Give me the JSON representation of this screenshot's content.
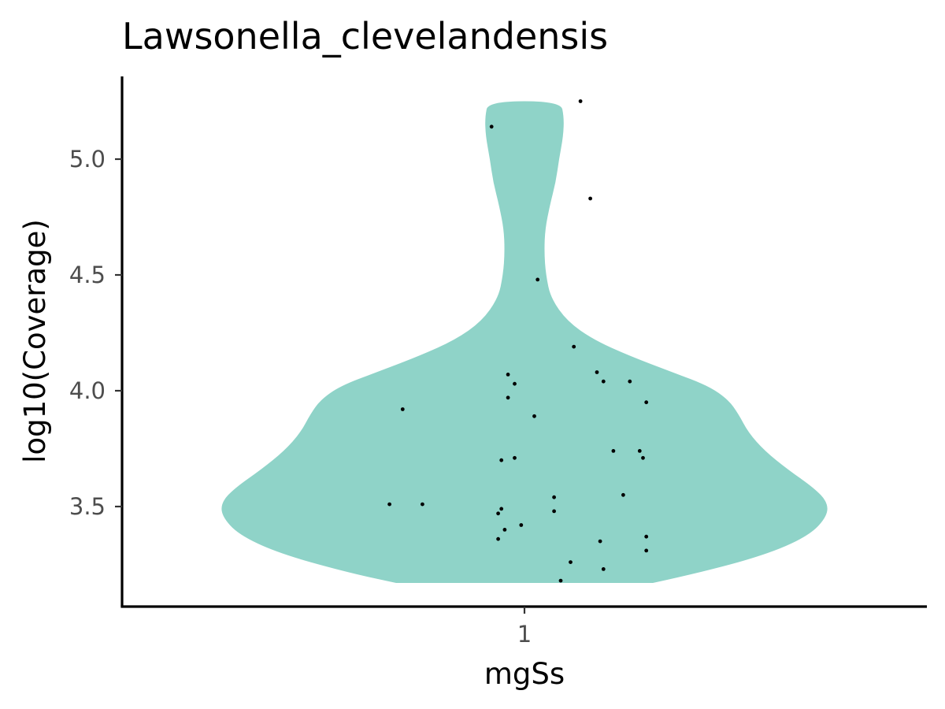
{
  "chart_data": {
    "type": "violin",
    "title": "Lawsonella_clevelandensis",
    "xlabel": "mgSs",
    "ylabel": "log10(Coverage)",
    "categories": [
      "1"
    ],
    "yticks": [
      3.5,
      4.0,
      4.5,
      5.0
    ],
    "ytick_labels": [
      "3.5",
      "4.0",
      "4.5",
      "5.0"
    ],
    "ylim": [
      3.08,
      5.3
    ],
    "fill_color": "#8fd3c8",
    "point_color": "#000000",
    "grid": false,
    "legend": "none",
    "density_profile": [
      {
        "y": 3.17,
        "half_width": 0.39
      },
      {
        "y": 3.22,
        "half_width": 0.55
      },
      {
        "y": 3.3,
        "half_width": 0.75
      },
      {
        "y": 3.38,
        "half_width": 0.87
      },
      {
        "y": 3.46,
        "half_width": 0.92
      },
      {
        "y": 3.52,
        "half_width": 0.92
      },
      {
        "y": 3.58,
        "half_width": 0.88
      },
      {
        "y": 3.66,
        "half_width": 0.8
      },
      {
        "y": 3.74,
        "half_width": 0.73
      },
      {
        "y": 3.82,
        "half_width": 0.68
      },
      {
        "y": 3.9,
        "half_width": 0.65
      },
      {
        "y": 3.96,
        "half_width": 0.62
      },
      {
        "y": 4.02,
        "half_width": 0.56
      },
      {
        "y": 4.08,
        "half_width": 0.45
      },
      {
        "y": 4.15,
        "half_width": 0.32
      },
      {
        "y": 4.22,
        "half_width": 0.21
      },
      {
        "y": 4.3,
        "half_width": 0.13
      },
      {
        "y": 4.4,
        "half_width": 0.08
      },
      {
        "y": 4.5,
        "half_width": 0.065
      },
      {
        "y": 4.6,
        "half_width": 0.06
      },
      {
        "y": 4.7,
        "half_width": 0.063
      },
      {
        "y": 4.8,
        "half_width": 0.077
      },
      {
        "y": 4.9,
        "half_width": 0.095
      },
      {
        "y": 5.0,
        "half_width": 0.105
      },
      {
        "y": 5.1,
        "half_width": 0.118
      },
      {
        "y": 5.18,
        "half_width": 0.12
      },
      {
        "y": 5.25,
        "half_width": 0.11
      }
    ],
    "points": [
      {
        "x": 1.17,
        "y": 5.25
      },
      {
        "x": 0.9,
        "y": 5.14
      },
      {
        "x": 1.2,
        "y": 4.83
      },
      {
        "x": 1.04,
        "y": 4.48
      },
      {
        "x": 1.15,
        "y": 4.19
      },
      {
        "x": 1.22,
        "y": 4.08
      },
      {
        "x": 0.95,
        "y": 4.07
      },
      {
        "x": 1.24,
        "y": 4.04
      },
      {
        "x": 1.32,
        "y": 4.04
      },
      {
        "x": 0.97,
        "y": 4.03
      },
      {
        "x": 0.95,
        "y": 3.97
      },
      {
        "x": 1.37,
        "y": 3.95
      },
      {
        "x": 0.63,
        "y": 3.92
      },
      {
        "x": 1.03,
        "y": 3.89
      },
      {
        "x": 1.27,
        "y": 3.74
      },
      {
        "x": 1.35,
        "y": 3.74
      },
      {
        "x": 1.36,
        "y": 3.71
      },
      {
        "x": 0.97,
        "y": 3.71
      },
      {
        "x": 0.93,
        "y": 3.7
      },
      {
        "x": 1.3,
        "y": 3.55
      },
      {
        "x": 1.09,
        "y": 3.54
      },
      {
        "x": 0.59,
        "y": 3.51
      },
      {
        "x": 0.69,
        "y": 3.51
      },
      {
        "x": 0.93,
        "y": 3.49
      },
      {
        "x": 1.09,
        "y": 3.48
      },
      {
        "x": 0.92,
        "y": 3.47
      },
      {
        "x": 0.99,
        "y": 3.42
      },
      {
        "x": 0.94,
        "y": 3.4
      },
      {
        "x": 1.37,
        "y": 3.37
      },
      {
        "x": 0.92,
        "y": 3.36
      },
      {
        "x": 1.23,
        "y": 3.35
      },
      {
        "x": 1.37,
        "y": 3.31
      },
      {
        "x": 1.14,
        "y": 3.26
      },
      {
        "x": 1.24,
        "y": 3.23
      },
      {
        "x": 1.11,
        "y": 3.18
      }
    ]
  }
}
